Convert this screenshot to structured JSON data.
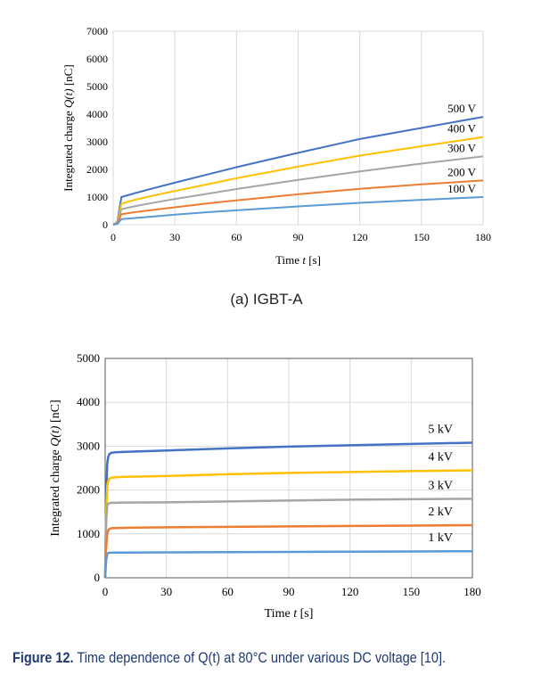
{
  "chart_data": [
    {
      "type": "line",
      "panel_label": "(a)  IGBT-A",
      "xlabel_prefix": "Time ",
      "xlabel_var": "t",
      "xlabel_suffix": " [s]",
      "ylabel_prefix": "Integrated charge ",
      "ylabel_var": "Q(t)",
      "ylabel_suffix": " [nC]",
      "xlim": [
        0,
        180
      ],
      "ylim": [
        0,
        7000
      ],
      "xticks": [
        0,
        30,
        60,
        90,
        120,
        150,
        180
      ],
      "yticks": [
        0,
        1000,
        2000,
        3000,
        4000,
        5000,
        6000,
        7000
      ],
      "grid": "vertical",
      "x": [
        0,
        2,
        4,
        10,
        20,
        30,
        45,
        60,
        90,
        120,
        150,
        180
      ],
      "series": [
        {
          "name": "500 V",
          "color": "#4472c4",
          "values": [
            0,
            100,
            1000,
            1130,
            1330,
            1520,
            1800,
            2080,
            2600,
            3100,
            3500,
            3900
          ]
        },
        {
          "name": "400 V",
          "color": "#ffc000",
          "values": [
            0,
            80,
            760,
            890,
            1060,
            1220,
            1450,
            1680,
            2100,
            2500,
            2840,
            3170
          ]
        },
        {
          "name": "300 V",
          "color": "#a5a5a5",
          "values": [
            0,
            60,
            560,
            660,
            800,
            930,
            1110,
            1290,
            1620,
            1930,
            2210,
            2470
          ]
        },
        {
          "name": "200 V",
          "color": "#ed7d31",
          "values": [
            0,
            40,
            380,
            450,
            540,
            630,
            760,
            880,
            1100,
            1300,
            1460,
            1600
          ]
        },
        {
          "name": "100 V",
          "color": "#5b9bd5",
          "values": [
            0,
            25,
            200,
            240,
            300,
            360,
            450,
            520,
            660,
            790,
            900,
            1000
          ]
        }
      ]
    },
    {
      "type": "line",
      "xlabel_prefix": "Time ",
      "xlabel_var": "t",
      "xlabel_suffix": " [s]",
      "ylabel_prefix": "Integrated charge ",
      "ylabel_var": "Q(t)",
      "ylabel_suffix": " [nC]",
      "xlim": [
        0,
        180
      ],
      "ylim": [
        0,
        5000
      ],
      "xticks": [
        0,
        30,
        60,
        90,
        120,
        150,
        180
      ],
      "yticks": [
        0,
        1000,
        2000,
        3000,
        4000,
        5000
      ],
      "grid": "both",
      "x": [
        0,
        0.5,
        1,
        1.5,
        2,
        3,
        5,
        10,
        30,
        60,
        90,
        120,
        150,
        180
      ],
      "series": [
        {
          "name": "5 kV",
          "color": "#4472c4",
          "values": [
            0,
            1800,
            2600,
            2750,
            2820,
            2850,
            2860,
            2870,
            2900,
            2950,
            2990,
            3020,
            3050,
            3080
          ]
        },
        {
          "name": "4 kV",
          "color": "#ffc000",
          "values": [
            0,
            1400,
            2100,
            2200,
            2260,
            2280,
            2290,
            2300,
            2320,
            2360,
            2390,
            2410,
            2430,
            2450
          ]
        },
        {
          "name": "3 kV",
          "color": "#a5a5a5",
          "values": [
            0,
            1300,
            1650,
            1690,
            1700,
            1710,
            1710,
            1715,
            1720,
            1740,
            1760,
            1780,
            1790,
            1800
          ]
        },
        {
          "name": "2 kV",
          "color": "#ed7d31",
          "values": [
            0,
            700,
            1000,
            1080,
            1110,
            1130,
            1135,
            1140,
            1150,
            1160,
            1170,
            1180,
            1190,
            1200
          ]
        },
        {
          "name": "1 kV",
          "color": "#5b9bd5",
          "values": [
            0,
            400,
            540,
            565,
            570,
            575,
            575,
            575,
            580,
            585,
            590,
            595,
            600,
            605
          ]
        }
      ]
    }
  ],
  "caption": {
    "label": "Figure 12.",
    "text": " Time dependence of Q(t) at 80°C under various DC voltage [10]."
  }
}
